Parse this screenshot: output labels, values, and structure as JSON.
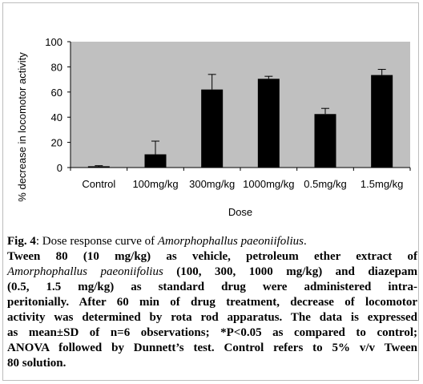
{
  "chart_data": {
    "type": "bar",
    "categories": [
      "Control",
      "100mg/kg",
      "300mg/kg",
      "1000mg/kg",
      "0.5mg/kg",
      "1.5mg/kg"
    ],
    "values": [
      1,
      10.5,
      62,
      70.5,
      42.5,
      73.5
    ],
    "errors": [
      0.5,
      10.5,
      12,
      2,
      4.5,
      4.5
    ],
    "xlabel": "Dose",
    "ylabel": "% decrease in locomotor activity",
    "ylim": [
      0,
      100
    ],
    "yticks": [
      "0",
      "20",
      "40",
      "60",
      "80",
      "100"
    ],
    "plot_bg": "#c0c0c0",
    "bar_color": "#000000",
    "grid": false
  },
  "caption": {
    "label": "Fig. 4",
    "title_prefix": ": Dose response curve of ",
    "species": "Amorphophallus paeoniifolius",
    "title_end": ".",
    "l2": "Tween 80 (10 mg/kg) as vehicle, petroleum ether extract of",
    "l3_species": "Amorphophallus paeoniifolius",
    "l3_rest": " (100, 300, 1000 mg/kg) and diazepam",
    "l4": "(0.5, 1.5 mg/kg) as standard drug were administered intra-",
    "l5": "peritonially. After 60 min of drug treatment, decrease of locomotor",
    "l6": "activity was determined by rota rod apparatus. The data is expressed",
    "l7": "as mean±SD of n=6 observations; *P<0.05 as compared to control;",
    "l8": "ANOVA followed by Dunnett’s test. Control refers to 5% v/v Tween",
    "l9": "80 solution."
  }
}
